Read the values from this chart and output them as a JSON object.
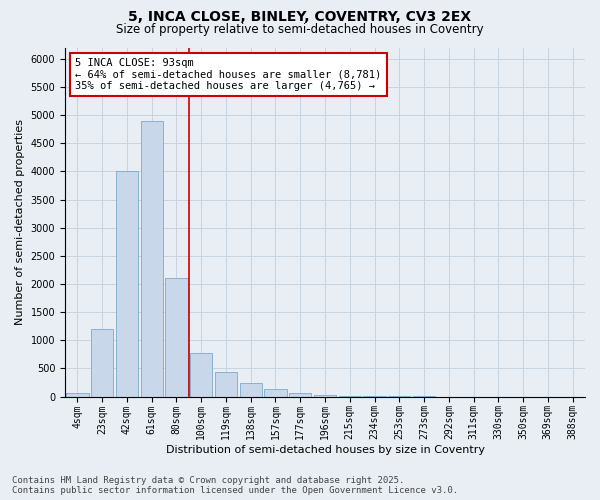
{
  "title_line1": "5, INCA CLOSE, BINLEY, COVENTRY, CV3 2EX",
  "title_line2": "Size of property relative to semi-detached houses in Coventry",
  "xlabel": "Distribution of semi-detached houses by size in Coventry",
  "ylabel": "Number of semi-detached properties",
  "categories": [
    "4sqm",
    "23sqm",
    "42sqm",
    "61sqm",
    "80sqm",
    "100sqm",
    "119sqm",
    "138sqm",
    "157sqm",
    "177sqm",
    "196sqm",
    "215sqm",
    "234sqm",
    "253sqm",
    "273sqm",
    "292sqm",
    "311sqm",
    "330sqm",
    "350sqm",
    "369sqm",
    "388sqm"
  ],
  "values": [
    55,
    1200,
    4000,
    4900,
    2100,
    780,
    430,
    240,
    130,
    60,
    30,
    10,
    5,
    2,
    1,
    0,
    0,
    0,
    0,
    0,
    0
  ],
  "bar_color": "#c8d8ea",
  "bar_edge_color": "#7aaac8",
  "grid_color": "#c8d4e0",
  "bg_color": "#e8eef4",
  "vline_color": "#cc0000",
  "annotation_title": "5 INCA CLOSE: 93sqm",
  "annotation_line1": "← 64% of semi-detached houses are smaller (8,781)",
  "annotation_line2": "35% of semi-detached houses are larger (4,765) →",
  "annotation_box_facecolor": "#ffffff",
  "annotation_box_edgecolor": "#cc0000",
  "ylim": [
    0,
    6200
  ],
  "yticks": [
    0,
    500,
    1000,
    1500,
    2000,
    2500,
    3000,
    3500,
    4000,
    4500,
    5000,
    5500,
    6000
  ],
  "footer_line1": "Contains HM Land Registry data © Crown copyright and database right 2025.",
  "footer_line2": "Contains public sector information licensed under the Open Government Licence v3.0.",
  "title_fontsize": 10,
  "subtitle_fontsize": 8.5,
  "axis_label_fontsize": 8,
  "tick_fontsize": 7,
  "annotation_fontsize": 7.5,
  "footer_fontsize": 6.5,
  "vline_xindex": 4.5
}
